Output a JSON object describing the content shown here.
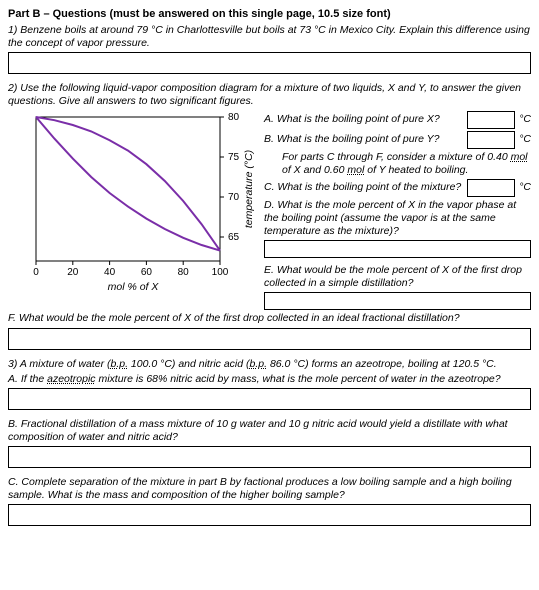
{
  "title": "Part B – Questions (must be answered on this single page, 10.5 size font)",
  "q1": "1) Benzene boils at around 79 °C in Charlottesville but boils at 73 °C in Mexico City. Explain this difference using the concept of vapor pressure.",
  "q2_intro": "2) Use the following liquid-vapor composition diagram for a mixture of two liquids, X and Y, to answer the given questions.  Give all answers to two significant figures.",
  "q2": {
    "a": "A. What is the boiling point of pure X?",
    "b": "B. What is the boiling point of pure Y?",
    "parts_note_pre": "For parts C through F, consider a mixture of 0.40 ",
    "parts_note_mol1": "mol",
    "parts_note_mid": " of X and 0.60 ",
    "parts_note_mol2": "mol",
    "parts_note_post": " of Y heated to boiling.",
    "c": "C. What is the boiling point of the mixture?",
    "d": "D. What is the mole percent of X in the vapor phase at the boiling point (assume the vapor is at the same temperature as the mixture)?",
    "e": "E. What would be the mole percent of X of the first drop collected in a simple distillation?",
    "unit": "°C"
  },
  "q2f": "F. What would be the mole percent of X of the first drop collected in an ideal fractional distillation?",
  "q3_intro_pre": "3) A mixture of water (",
  "q3_bp1": "b.p.",
  "q3_intro_mid1": " 100.0 °C) and nitric acid (",
  "q3_bp2": "b.p.",
  "q3_intro_mid2": " 86.0 °C) forms an azeotrope, boiling at 120.5 °C.",
  "q3a_pre": "A. If the ",
  "q3a_azeo": "azeotropic",
  "q3a_post": " mixture is 68% nitric acid by mass, what is the mole percent of water in the azeotrope?",
  "q3b": "B. Fractional distillation of a mass mixture of 10 g water and 10 g nitric acid would yield a distillate with what composition of water and nitric acid?",
  "q3c": "C. Complete separation of the mixture in part B by factional produces a low boiling sample and a high boiling sample. What is the mass and composition of the higher boiling sample?",
  "chart": {
    "type": "line",
    "x_label": "mol % of X",
    "y_label": "temperature (°C)",
    "xlim": [
      0,
      100
    ],
    "ylim": [
      62,
      80
    ],
    "xticks": [
      0,
      20,
      40,
      60,
      80,
      100
    ],
    "yticks": [
      65,
      70,
      75,
      80
    ],
    "plot_bg": "#ffffff",
    "axis_color": "#000000",
    "tick_color": "#000000",
    "tick_fontsize": 10,
    "label_fontsize": 10.5,
    "liquid_curve": {
      "color": "#7a2ea8",
      "width": 2,
      "points": [
        [
          0,
          80
        ],
        [
          10,
          77.3
        ],
        [
          20,
          74.8
        ],
        [
          30,
          72.5
        ],
        [
          40,
          70.5
        ],
        [
          50,
          68.8
        ],
        [
          60,
          67.3
        ],
        [
          70,
          66.0
        ],
        [
          80,
          64.9
        ],
        [
          90,
          64.0
        ],
        [
          100,
          63.3
        ]
      ]
    },
    "vapor_curve": {
      "color": "#7a2ea8",
      "width": 2,
      "points": [
        [
          0,
          80
        ],
        [
          10,
          79.6
        ],
        [
          20,
          79.0
        ],
        [
          30,
          78.2
        ],
        [
          40,
          77.1
        ],
        [
          50,
          75.8
        ],
        [
          60,
          74.1
        ],
        [
          70,
          72.0
        ],
        [
          80,
          69.5
        ],
        [
          90,
          66.6
        ],
        [
          100,
          63.3
        ]
      ]
    }
  }
}
